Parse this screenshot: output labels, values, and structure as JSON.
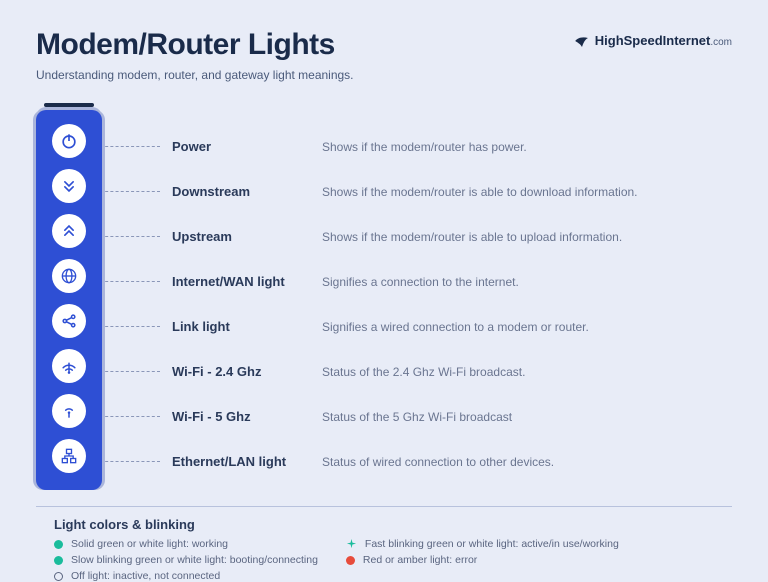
{
  "header": {
    "title": "Modem/Router Lights",
    "subtitle": "Understanding modem, router, and gateway light meanings.",
    "logo_text": "HighSpeedInternet",
    "logo_suffix": ".com"
  },
  "device": {
    "color": "#2e4fd4",
    "circle_color": "#ffffff",
    "icon_color": "#2e4fd4"
  },
  "rows": [
    {
      "icon": "power",
      "label": "Power",
      "desc": "Shows if the modem/router has power."
    },
    {
      "icon": "downstream",
      "label": "Downstream",
      "desc": "Shows if the modem/router is able to download information."
    },
    {
      "icon": "upstream",
      "label": "Upstream",
      "desc": "Shows if the modem/router is able to upload information."
    },
    {
      "icon": "globe",
      "label": "Internet/WAN light",
      "desc": "Signifies a connection to the internet."
    },
    {
      "icon": "link",
      "label": "Link light",
      "desc": "Signifies a wired connection to a modem or router."
    },
    {
      "icon": "wifi24",
      "label": "Wi-Fi - 2.4 Ghz",
      "desc": "Status of the 2.4 Ghz Wi-Fi broadcast."
    },
    {
      "icon": "wifi5",
      "label": "Wi-Fi - 5 Ghz",
      "desc": "Status of the 5 Ghz Wi-Fi broadcast"
    },
    {
      "icon": "ethernet",
      "label": "Ethernet/LAN light",
      "desc": "Status of wired connection to other devices."
    }
  ],
  "legend": {
    "title": "Light colors & blinking",
    "items": [
      {
        "type": "dot",
        "color": "#1abc9c",
        "text": "Solid green or white light: working"
      },
      {
        "type": "dot",
        "color": "#1abc9c",
        "text": "Slow blinking green or white light: booting/connecting"
      },
      {
        "type": "sparkle",
        "color": "#1abc9c",
        "text": "Fast blinking green or white light: active/in use/working"
      },
      {
        "type": "dot",
        "color": "#e74c3c",
        "text": "Red or amber light: error"
      },
      {
        "type": "outline",
        "text": "Off light: inactive, not connected"
      }
    ]
  },
  "colors": {
    "background": "#e8ecf7",
    "text_primary": "#1a2b4a",
    "text_secondary": "#6a7590",
    "leader": "#8a96b8"
  }
}
